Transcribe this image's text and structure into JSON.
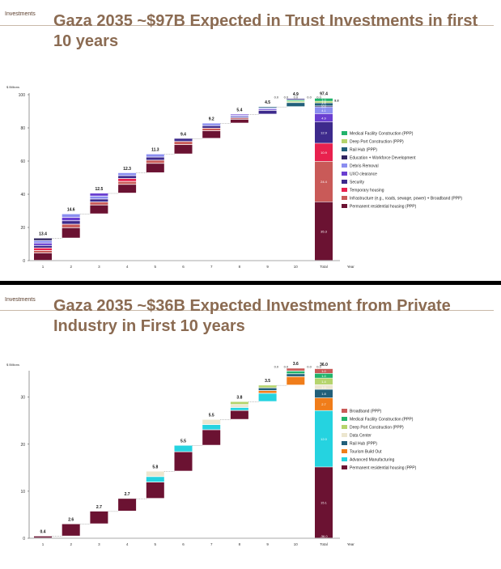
{
  "slides": [
    {
      "tag": "Investments",
      "title_line1": "Gaza 2035 ~$97B Expected in Trust Investments in first",
      "title_line2": "10 years",
      "chart_data": {
        "type": "bar",
        "subtype": "stacked-waterfall",
        "ylabel": "$ Billions",
        "xlabel": "Year",
        "categories": [
          "1",
          "2",
          "3",
          "4",
          "5",
          "6",
          "7",
          "8",
          "9",
          "10",
          "Total"
        ],
        "ylim": [
          0,
          100
        ],
        "yticks": [
          0,
          20,
          40,
          60,
          80,
          100
        ],
        "year_totals": [
          13.4,
          14.6,
          12.5,
          12.3,
          11.3,
          9.4,
          9.2,
          5.4,
          4.5,
          4.9
        ],
        "total_label": "97.4",
        "total_breakdown_labels": [
          "35.3",
          "24.4",
          "10.9",
          "12.9",
          "4.9",
          "4.1",
          "0.0",
          "0.0",
          "1.8",
          "1.0",
          "1.8",
          "0.2"
        ],
        "small_value_labels": [
          "0.0",
          "0.0",
          "0.0",
          "0.0",
          "0.0"
        ],
        "series": [
          {
            "name": "Permanent residential housing (PPP)",
            "color": "#6b1232",
            "total": 35.3
          },
          {
            "name": "Infrastructure (e.g., roads, sewage, power) + Broadband (PPP)",
            "color": "#c95a58",
            "total": 24.4
          },
          {
            "name": "Temporary housing",
            "color": "#e8214e",
            "total": 10.9
          },
          {
            "name": "Security",
            "color": "#3d2a8c",
            "total": 12.9
          },
          {
            "name": "UXO clearance",
            "color": "#6a3fd1",
            "total": 4.9
          },
          {
            "name": "Debris Removal",
            "color": "#8b8ef0",
            "total": 4.1
          },
          {
            "name": "Education + Workforce Development",
            "color": "#2f2560",
            "total": 0.0
          },
          {
            "name": "Rail Hub (PPP)",
            "color": "#215f7a",
            "total": 1.8
          },
          {
            "name": "Deep Port Construction (PPP)",
            "color": "#b5d46c",
            "total": 1.0
          },
          {
            "name": "Medical Facility Construction (PPP)",
            "color": "#22b36b",
            "total": 1.8
          }
        ],
        "legend_position": "right"
      }
    },
    {
      "tag": "Investments",
      "title_line1": "Gaza 2035 ~$36B Expected Investment from Private",
      "title_line2": "Industry in First 10 years",
      "chart_data": {
        "type": "bar",
        "subtype": "stacked-waterfall",
        "ylabel": "$ Billions",
        "xlabel": "Year",
        "categories": [
          "1",
          "2",
          "3",
          "4",
          "5",
          "6",
          "7",
          "8",
          "9",
          "10",
          "Total"
        ],
        "ylim": [
          0,
          37
        ],
        "yticks": [
          0,
          10,
          20,
          30
        ],
        "year_totals": [
          0.4,
          2.6,
          2.7,
          2.7,
          5.8,
          5.5,
          5.5,
          3.8,
          3.5,
          3.6
        ],
        "total_label": "36.0",
        "total_breakdown_labels": [
          "15.1",
          "12.0",
          "2.7",
          "1.8",
          "1.0",
          "1.4",
          "1.0",
          "1.0"
        ],
        "small_value_labels": [
          "0.0",
          "0.0",
          "0.0",
          "0.0"
        ],
        "bottom_total_label": "-36.0",
        "series": [
          {
            "name": "Permanent residential housing (PPP)",
            "color": "#6b1232",
            "total": 15.1
          },
          {
            "name": "Advanced Manufacturing",
            "color": "#25d3e0",
            "total": 12.0
          },
          {
            "name": "Tourism Build Out",
            "color": "#f07d1a",
            "total": 2.7
          },
          {
            "name": "Rail Hub (PPP)",
            "color": "#215f7a",
            "total": 1.8
          },
          {
            "name": "Data Center",
            "color": "#ece6cf",
            "total": 1.0
          },
          {
            "name": "Deep Port Construction (PPP)",
            "color": "#b5d46c",
            "total": 1.4
          },
          {
            "name": "Medical Facility Construction (PPP)",
            "color": "#22b36b",
            "total": 1.0
          },
          {
            "name": "Broadband (PPP)",
            "color": "#c95a58",
            "total": 1.0
          }
        ],
        "legend_position": "right"
      }
    }
  ]
}
